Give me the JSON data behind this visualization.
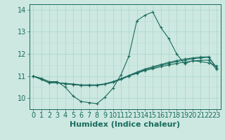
{
  "title": "",
  "xlabel": "Humidex (Indice chaleur)",
  "ylabel": "",
  "xlim": [
    -0.5,
    23.5
  ],
  "ylim": [
    9.5,
    14.25
  ],
  "xticks": [
    0,
    1,
    2,
    3,
    4,
    5,
    6,
    7,
    8,
    9,
    10,
    11,
    12,
    13,
    14,
    15,
    16,
    17,
    18,
    19,
    20,
    21,
    22,
    23
  ],
  "yticks": [
    10,
    11,
    12,
    13,
    14
  ],
  "background_color": "#cce8e0",
  "grid_color_major": "#aad4cc",
  "grid_color_minor": "#bcddd6",
  "line_color": "#1a6b5e",
  "series": [
    [
      11.0,
      10.9,
      10.75,
      10.75,
      10.5,
      10.1,
      9.85,
      9.8,
      9.75,
      10.05,
      10.45,
      11.05,
      11.9,
      13.5,
      13.75,
      13.9,
      13.2,
      12.7,
      12.0,
      11.55,
      11.7,
      11.65,
      11.6,
      11.45
    ],
    [
      11.0,
      10.85,
      10.7,
      10.7,
      10.65,
      10.62,
      10.58,
      10.58,
      10.58,
      10.63,
      10.72,
      10.85,
      11.0,
      11.15,
      11.28,
      11.38,
      11.48,
      11.57,
      11.65,
      11.72,
      11.78,
      11.82,
      11.85,
      11.38
    ],
    [
      11.0,
      10.85,
      10.7,
      10.7,
      10.65,
      10.62,
      10.58,
      10.58,
      10.58,
      10.63,
      10.72,
      10.85,
      11.0,
      11.12,
      11.25,
      11.33,
      11.42,
      11.5,
      11.57,
      11.63,
      11.68,
      11.71,
      11.72,
      11.3
    ],
    [
      11.0,
      10.85,
      10.7,
      10.7,
      10.67,
      10.64,
      10.6,
      10.6,
      10.6,
      10.65,
      10.75,
      10.88,
      11.03,
      11.18,
      11.32,
      11.42,
      11.52,
      11.62,
      11.7,
      11.77,
      11.82,
      11.86,
      11.87,
      11.38
    ]
  ],
  "xlabel_fontsize": 8,
  "tick_fontsize": 7
}
